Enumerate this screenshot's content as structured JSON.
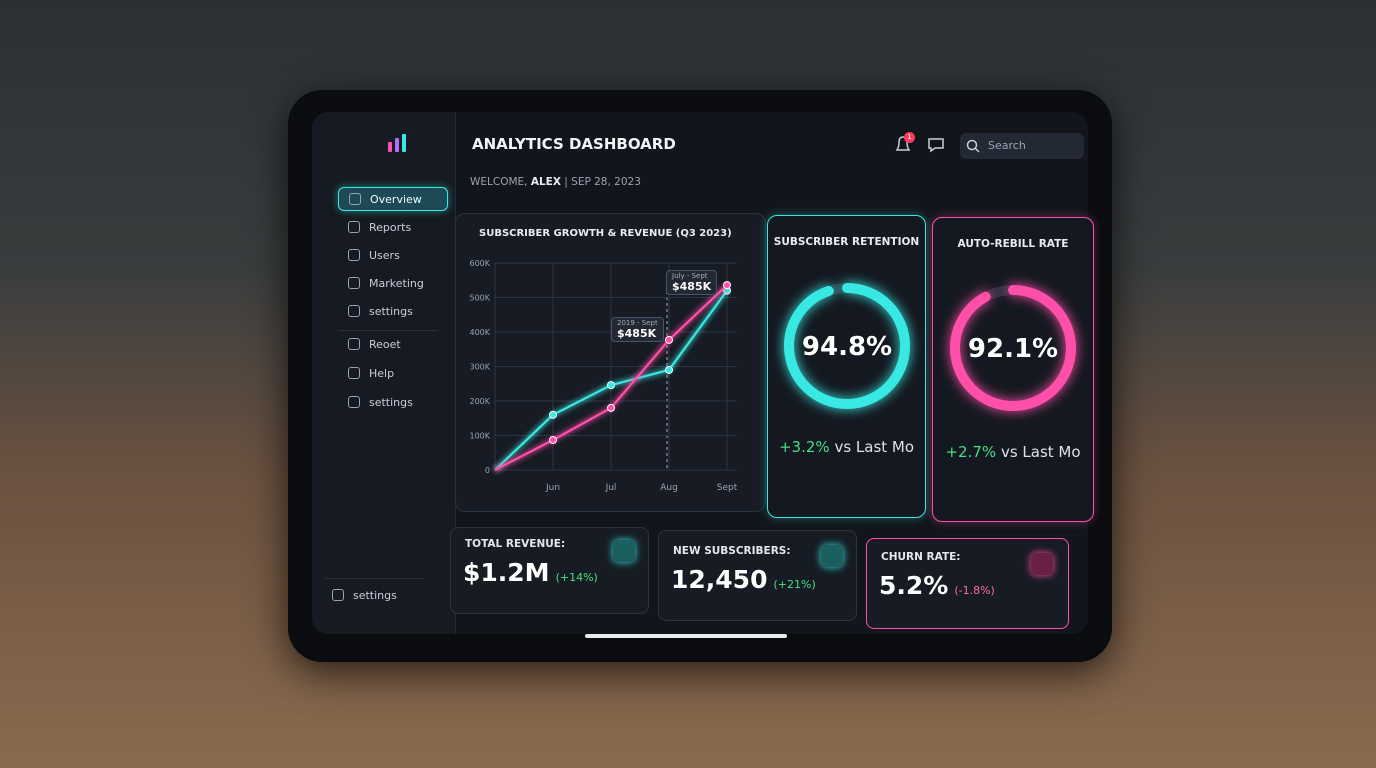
{
  "header": {
    "title": "ANALYTICS DASHBOARD",
    "welcome": "WELCOME,",
    "user": "ALEX",
    "date": "SEP 28, 2023",
    "search": "Search",
    "notifications": "1"
  },
  "sidebar": {
    "items": [
      "Overview",
      "Reports",
      "Users",
      "Marketing",
      "settings",
      "Reoet",
      "Help",
      "settings"
    ],
    "footer": "settings"
  },
  "chart_data": {
    "type": "line",
    "title": "SUBSCRIBER GROWTH & REVENUE (Q3 2023)",
    "categories": [
      null,
      "Jun",
      "Jul",
      "Aug",
      "Sept"
    ],
    "series": [
      {
        "color": "#38e8e2",
        "values": [
          0,
          160000,
          246000,
          290000,
          520000
        ]
      },
      {
        "color": "#ff4fa8",
        "values": [
          0,
          87000,
          180000,
          377000,
          536000
        ]
      }
    ],
    "ylim": [
      0,
      600000
    ],
    "yticks": [
      0,
      {
        "value": 100000,
        "label": "100K"
      },
      {
        "value": 200000,
        "label": "200K"
      },
      {
        "value": 300000,
        "label": "300K"
      },
      {
        "value": 400000,
        "label": "400K"
      },
      {
        "value": 500000,
        "label": "500K"
      },
      {
        "value": 600000,
        "label": "600K"
      }
    ],
    "grid": true,
    "annotations": [
      {
        "period": "July - Sept",
        "amount": "$485K"
      },
      {
        "period": "2019 - Sept",
        "amount": "$485K"
      }
    ]
  },
  "gauges": [
    {
      "title": "SUBSCRIBER RETENTION",
      "value": 94.8,
      "value_label": "94.8%",
      "change": "+3.2%",
      "compare": "vs Last Mo",
      "color": "#38e8e2"
    },
    {
      "title": "AUTO-REBILL RATE",
      "value": 92.1,
      "value_label": "92.1%",
      "change": "+2.7%",
      "compare": "vs Last Mo",
      "color": "#ff4fa8"
    }
  ],
  "kpis": [
    {
      "title": "TOTAL REVENUE:",
      "value": "$1.2M",
      "change": "(+14%)"
    },
    {
      "title": "NEW SUBSCRIBERS:",
      "value": "12,450",
      "change": "(+21%)"
    },
    {
      "title": "CHURN RATE:",
      "value": "5.2%",
      "change": "(-1.8%)"
    }
  ]
}
